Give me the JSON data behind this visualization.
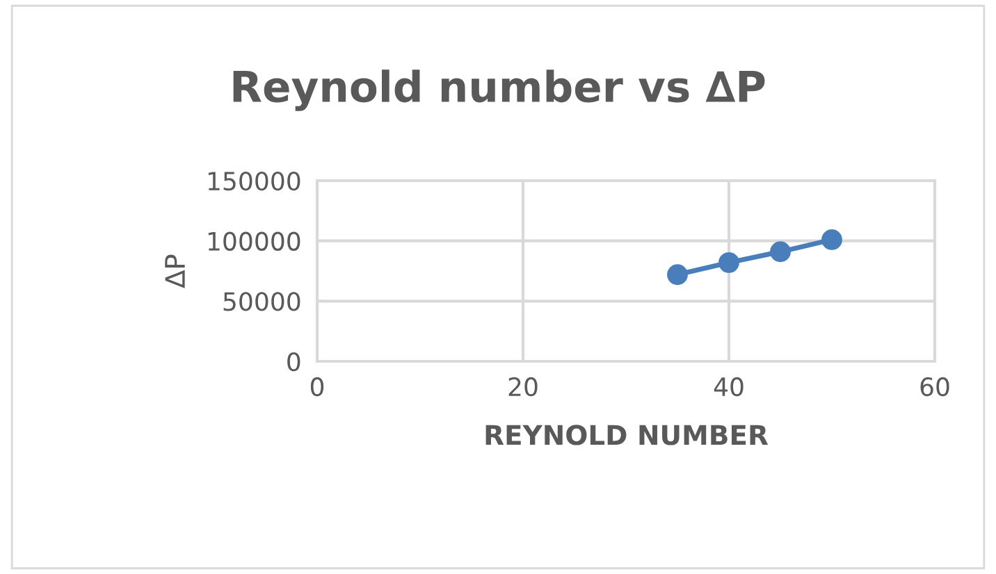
{
  "chart_data": {
    "type": "line",
    "title": "Reynold number vs ∆P",
    "xlabel": "REYNOLD NUMBER",
    "ylabel": "∆P",
    "x": [
      35,
      40,
      45,
      50
    ],
    "series": [
      {
        "color": "#4a7ebb",
        "values": [
          72000,
          82000,
          91000,
          101000
        ]
      }
    ],
    "xlim": [
      0,
      60
    ],
    "xticks": [
      0,
      20,
      40,
      60
    ],
    "ylim": [
      0,
      150000
    ],
    "yticks": [
      0,
      50000,
      100000,
      150000
    ],
    "grid": true,
    "marker": "circle",
    "line_style": "solid",
    "legend": false
  }
}
